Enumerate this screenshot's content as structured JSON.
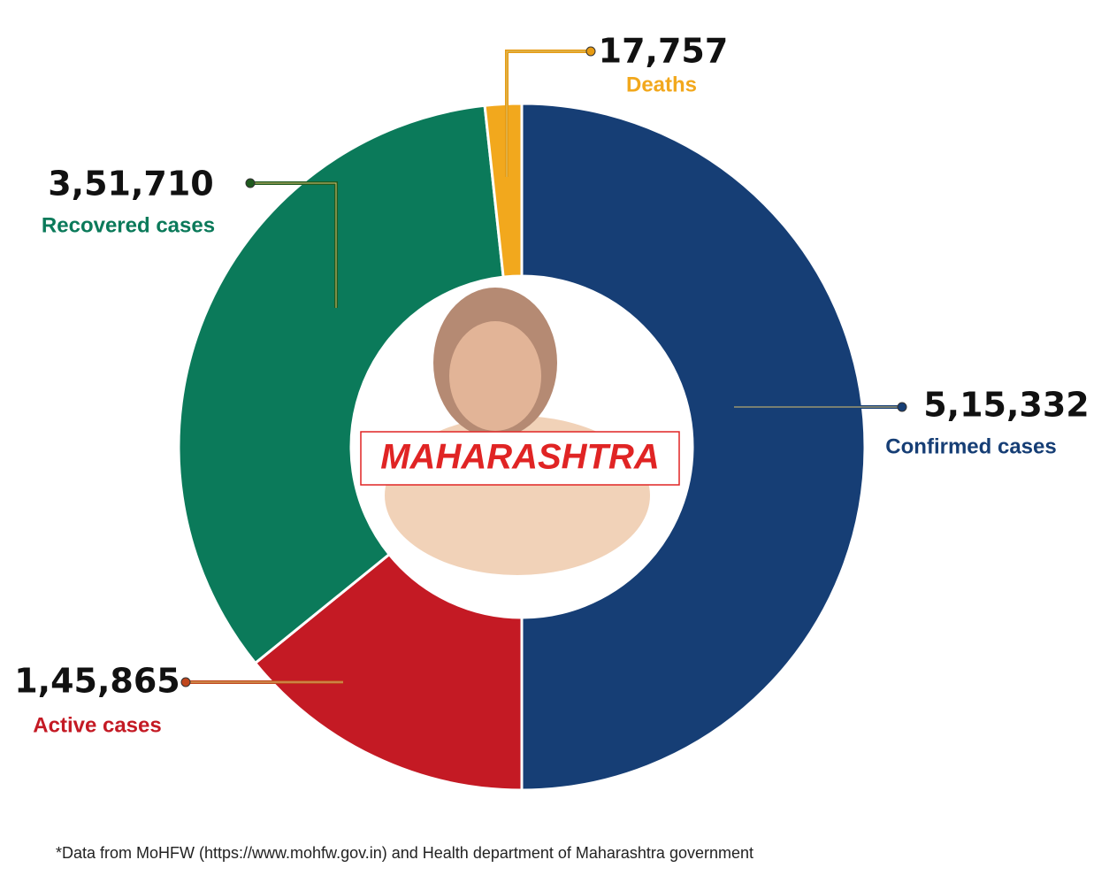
{
  "chart_data": {
    "type": "donut",
    "center_label": "MAHARASHTRA",
    "categories": [
      "Confirmed cases",
      "Active cases",
      "Recovered cases",
      "Deaths"
    ],
    "values": [
      515332,
      145865,
      351710,
      17757
    ],
    "value_labels": [
      "5,15,332",
      "1,45,865",
      "3,51,710",
      "17,757"
    ],
    "colors": [
      "#163e75",
      "#c41a24",
      "#0b7a5a",
      "#f2a81d"
    ],
    "note": "*Data from MoHFW (https://www.mohfw.gov.in) and Health department of Maharashtra government"
  }
}
